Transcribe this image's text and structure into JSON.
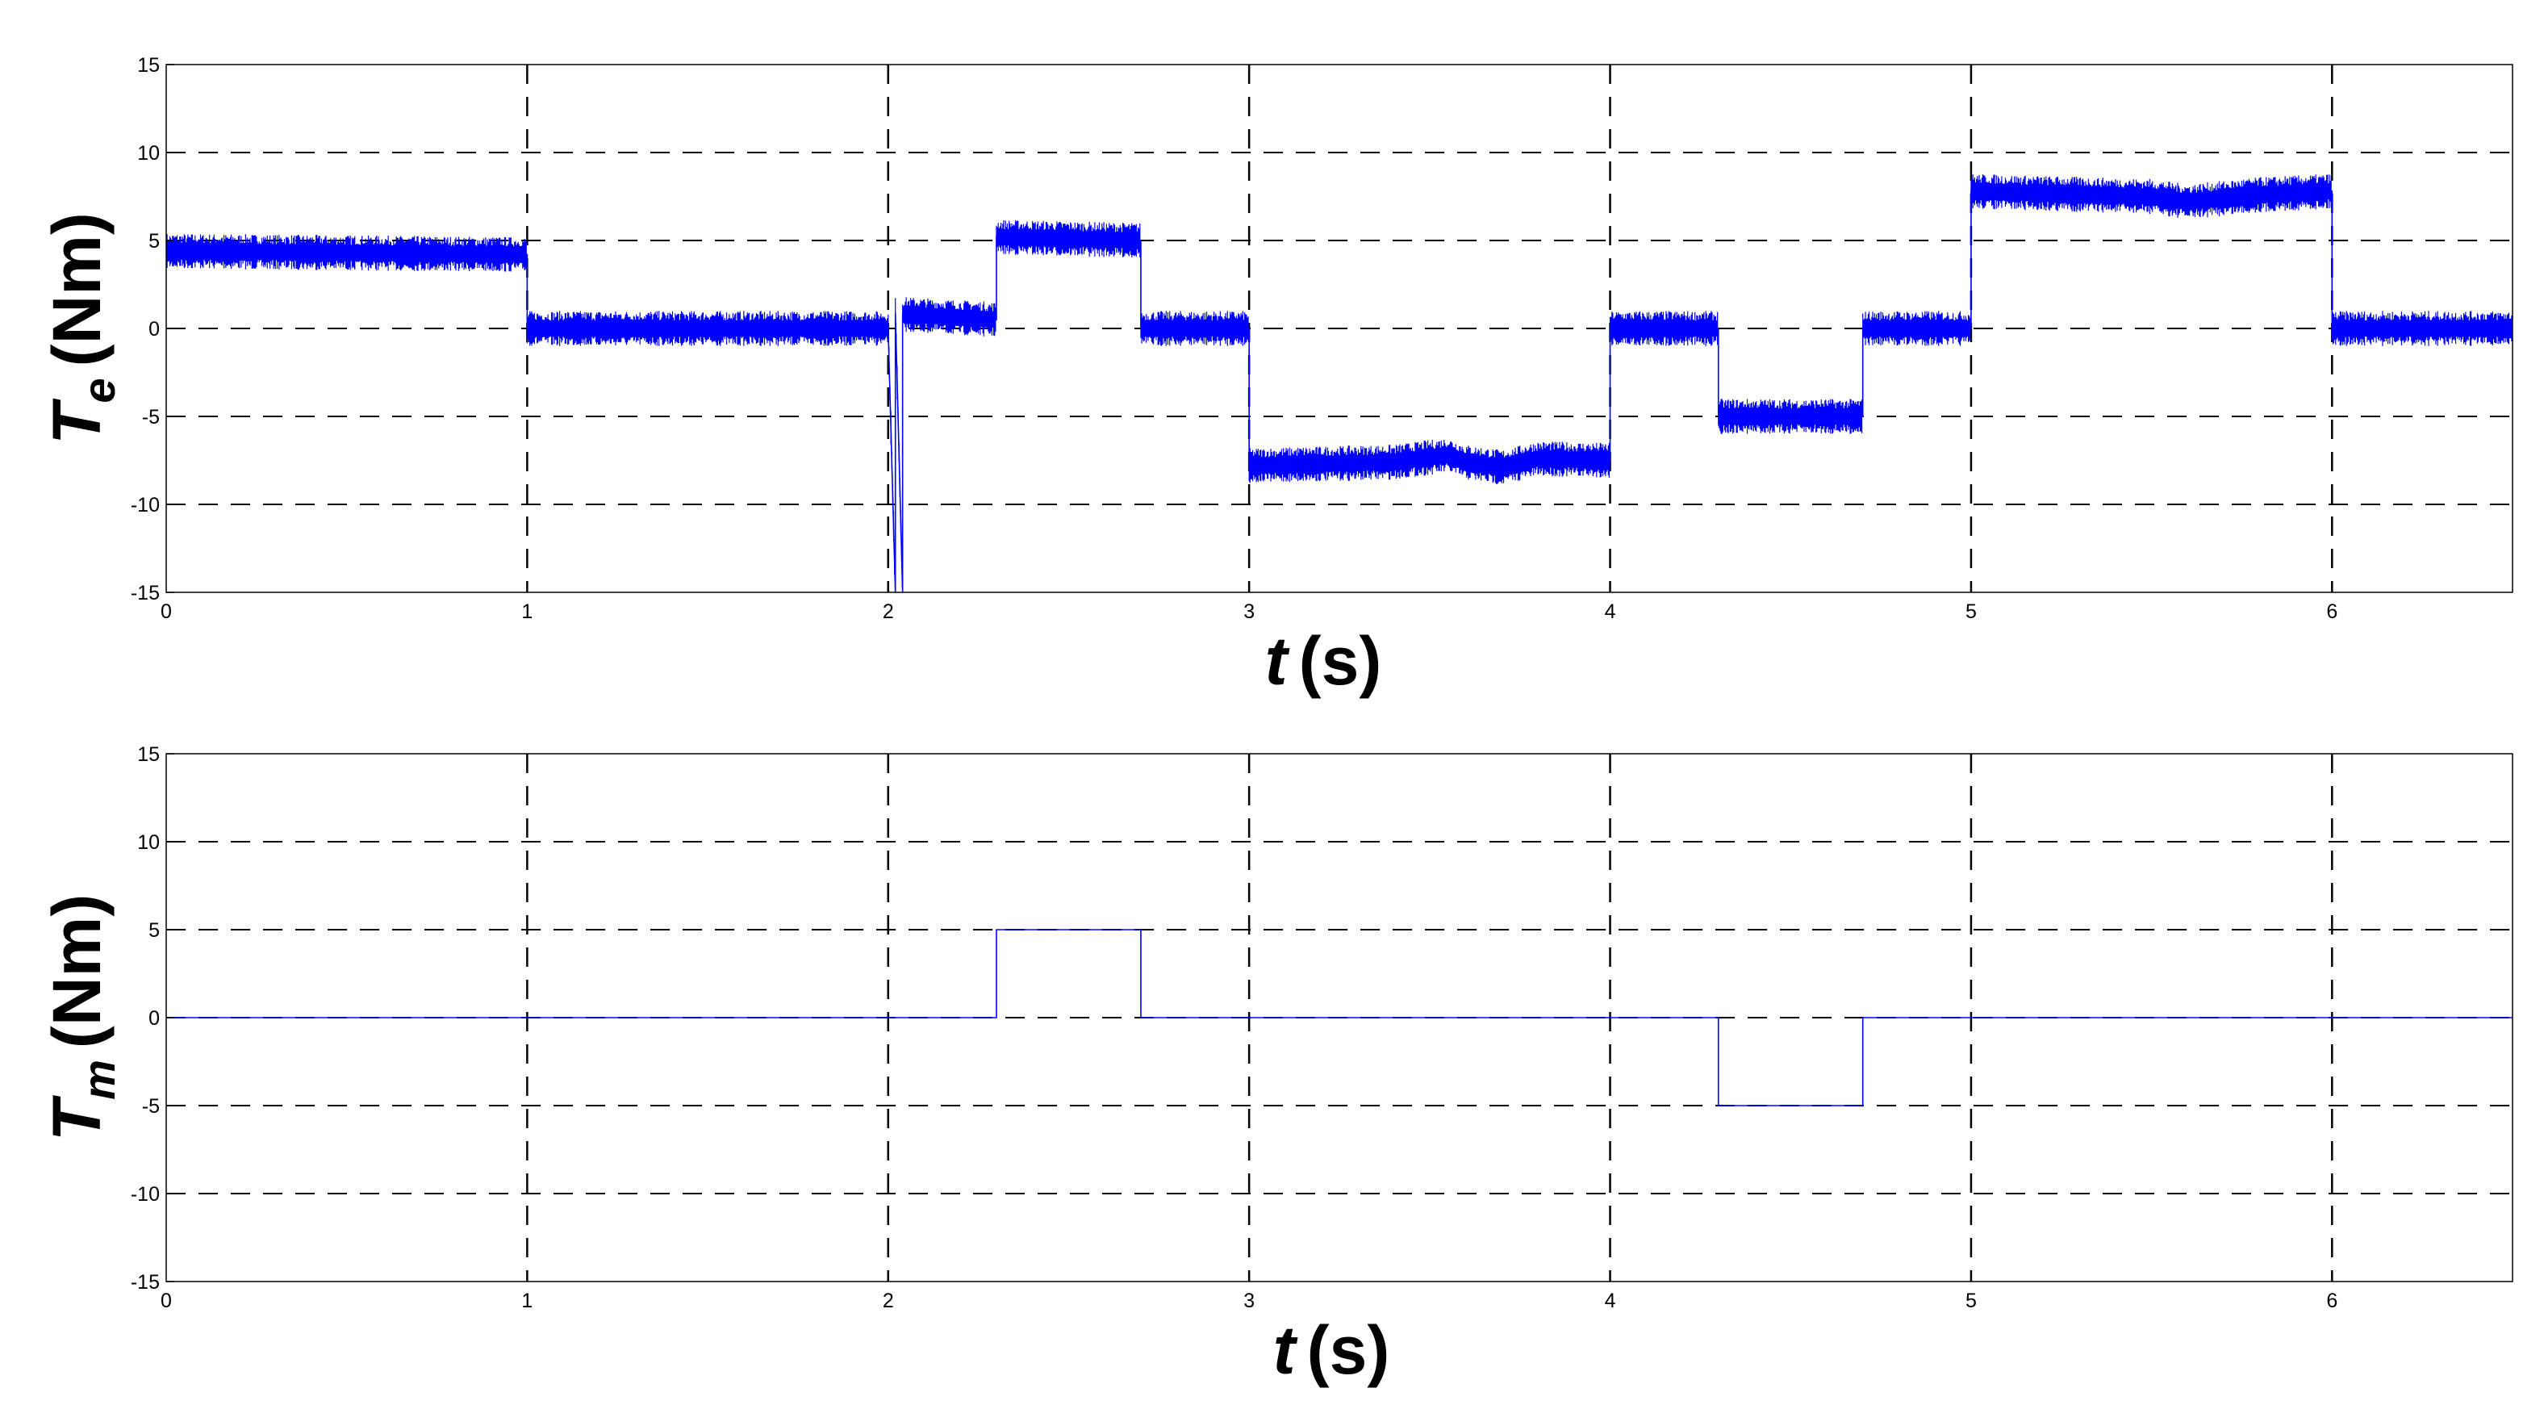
{
  "figure": {
    "panels": [
      {
        "ylabel_var": "T",
        "ylabel_sub": "e",
        "ylabel_unit": "(Nm)",
        "xlabel_var": "t",
        "xlabel_unit": "(s)"
      },
      {
        "ylabel_var": "T",
        "ylabel_sub": "m",
        "ylabel_unit": "(Nm)",
        "xlabel_var": "t",
        "xlabel_unit": "(s)"
      }
    ]
  },
  "chart_data": [
    {
      "type": "line",
      "title": "",
      "xlabel": "t (s)",
      "ylabel": "Te (Nm)",
      "xlim": [
        0,
        6.5
      ],
      "ylim": [
        -15,
        15
      ],
      "xticks": [
        0,
        1,
        2,
        3,
        4,
        5,
        6
      ],
      "yticks": [
        15,
        10,
        5,
        0,
        -5,
        -10,
        -15
      ],
      "grid": true,
      "line_color": "#0000ff",
      "series": [
        {
          "x": [
            0,
            1,
            1,
            2,
            2.02,
            2.02,
            2.04,
            2.04,
            2.3,
            2.3,
            2.7,
            2.7,
            3.0,
            3.0,
            3.4,
            3.55,
            3.6,
            3.7,
            3.8,
            4.0,
            4.0,
            4.3,
            4.3,
            4.7,
            4.7,
            5.0,
            5.0,
            5.5,
            5.6,
            5.8,
            6.0,
            6.0,
            6.5
          ],
          "y": [
            4.4,
            4.2,
            0,
            0,
            -15,
            0.9,
            -15,
            0.8,
            0.5,
            5.2,
            5.0,
            0,
            0,
            -7.8,
            -7.6,
            -7.2,
            -7.6,
            -7.9,
            -7.4,
            -7.5,
            0,
            0,
            -5,
            -5,
            0,
            0,
            7.8,
            7.5,
            7.2,
            7.6,
            7.8,
            0,
            0
          ]
        }
      ]
    },
    {
      "type": "line",
      "title": "",
      "xlabel": "t (s)",
      "ylabel": "Tm (Nm)",
      "xlim": [
        0,
        6.5
      ],
      "ylim": [
        -15,
        15
      ],
      "xticks": [
        0,
        1,
        2,
        3,
        4,
        5,
        6
      ],
      "yticks": [
        15,
        10,
        5,
        0,
        -5,
        -10,
        -15
      ],
      "grid": true,
      "line_color": "#0000ff",
      "series": [
        {
          "x": [
            0,
            2.3,
            2.3,
            2.7,
            2.7,
            4.3,
            4.3,
            4.7,
            4.7,
            6.5
          ],
          "y": [
            0,
            0,
            5,
            5,
            0,
            0,
            -5,
            -5,
            0,
            0
          ]
        }
      ]
    }
  ]
}
